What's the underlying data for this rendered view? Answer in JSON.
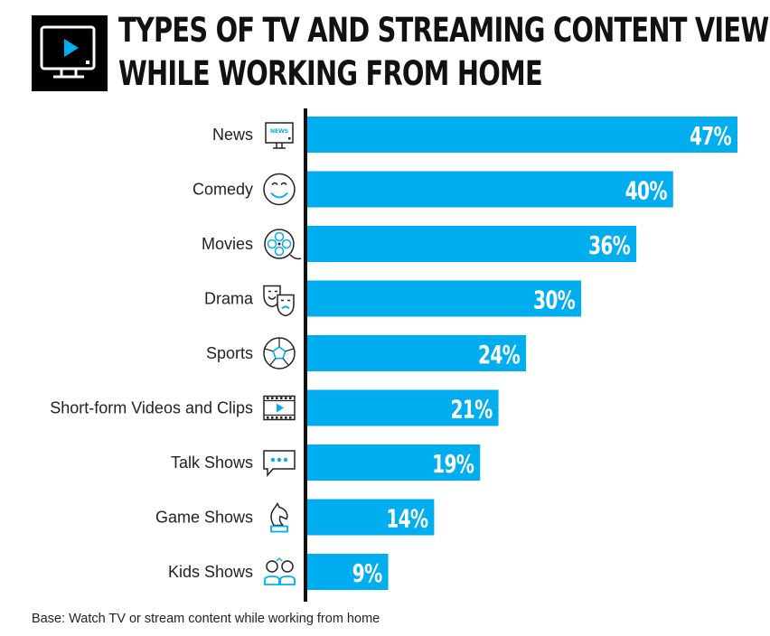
{
  "header": {
    "title_line1": "TYPES OF TV AND STREAMING CONTENT VIEWED",
    "title_line2": "WHILE WORKING FROM HOME",
    "icon": "tv-play-icon"
  },
  "footnote": "Base: Watch TV or stream content while working from home",
  "colors": {
    "bar": "#00AEEF",
    "axis": "#111111",
    "icon_accent": "#00AEEF",
    "title_icon_bg": "#000000"
  },
  "chart_data": {
    "type": "bar",
    "orientation": "horizontal",
    "categories": [
      "News",
      "Comedy",
      "Movies",
      "Drama",
      "Sports",
      "Short-form Videos and Clips",
      "Talk Shows",
      "Game Shows",
      "Kids Shows"
    ],
    "values": [
      47,
      40,
      36,
      30,
      24,
      21,
      19,
      14,
      9
    ],
    "value_labels": [
      "47%",
      "40%",
      "36%",
      "30%",
      "24%",
      "21%",
      "19%",
      "14%",
      "9%"
    ],
    "icons": [
      "news-tv-icon",
      "smiley-face-icon",
      "film-reel-icon",
      "theater-masks-icon",
      "soccer-ball-icon",
      "film-strip-icon",
      "speech-bubble-icon",
      "chess-knight-icon",
      "kids-icon"
    ],
    "xlim": [
      0,
      47
    ],
    "title": "TYPES OF TV AND STREAMING CONTENT VIEWED WHILE WORKING FROM HOME",
    "xlabel": "",
    "ylabel": "",
    "grid": false,
    "legend": "none"
  }
}
